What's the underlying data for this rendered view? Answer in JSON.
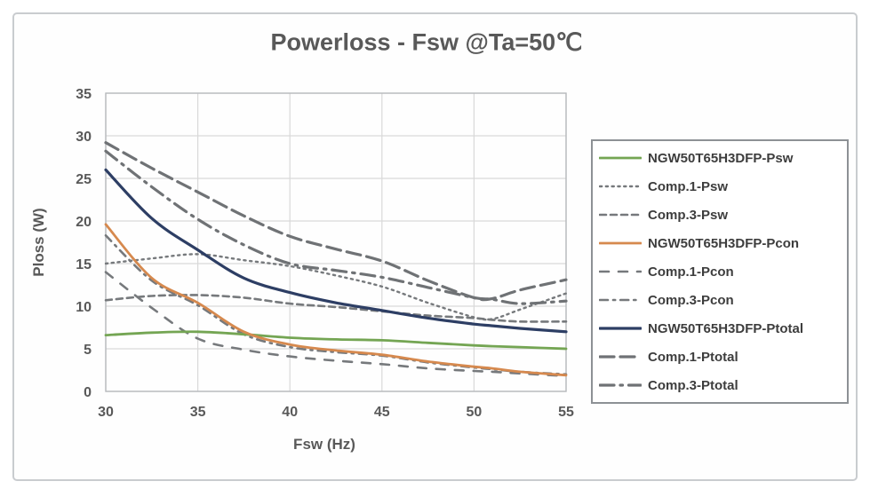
{
  "title": "Powerloss - Fsw @Ta=50℃",
  "colors": {
    "green": "#74a553",
    "orange": "#d6894e",
    "navy": "#2d3e64",
    "gray": "#76797c",
    "gray_dark": "#6f7275",
    "gridline": "#d9d9d9",
    "plot_border": "#b7babd",
    "axis_text": "#595959",
    "legend_text": "#3d3d3d"
  },
  "chart_data": {
    "type": "line",
    "title": "Powerloss - Fsw @Ta=50℃",
    "xlabel": "Fsw (Hz)",
    "ylabel": "Ploss (W)",
    "xlim": [
      30,
      55
    ],
    "ylim": [
      0,
      35
    ],
    "xticks": [
      30,
      35,
      40,
      45,
      50,
      55
    ],
    "yticks": [
      0,
      5,
      10,
      15,
      20,
      25,
      30,
      35
    ],
    "grid": true,
    "legend_position": "right",
    "x": [
      30,
      32.5,
      35,
      37.5,
      40,
      42.5,
      45,
      47.5,
      50,
      51,
      52.5,
      55
    ],
    "series": [
      {
        "name": "NGW50T65H3DFP-Psw",
        "color": "#74a553",
        "dash": [],
        "width": 2.8,
        "values": [
          6.6,
          6.9,
          7.0,
          6.7,
          6.3,
          6.1,
          6.0,
          5.7,
          5.4,
          5.3,
          5.2,
          5.0
        ]
      },
      {
        "name": "Comp.1-Psw",
        "color": "#76797c",
        "dash": [
          2.2,
          4.6
        ],
        "width": 2.4,
        "values": [
          15.0,
          15.6,
          16.1,
          15.4,
          14.7,
          13.6,
          12.3,
          10.4,
          8.7,
          8.5,
          9.6,
          11.5
        ]
      },
      {
        "name": "Comp.3-Psw",
        "color": "#76797c",
        "dash": [
          7,
          5
        ],
        "width": 2.6,
        "values": [
          10.7,
          11.2,
          11.3,
          11.0,
          10.3,
          9.9,
          9.4,
          8.9,
          8.6,
          8.4,
          8.2,
          8.2
        ]
      },
      {
        "name": "NGW50T65H3DFP-Pcon",
        "color": "#d6894e",
        "dash": [],
        "width": 2.8,
        "values": [
          19.6,
          13.3,
          10.4,
          7.0,
          5.5,
          4.8,
          4.3,
          3.5,
          2.9,
          2.7,
          2.3,
          1.9
        ]
      },
      {
        "name": "Comp.1-Pcon",
        "color": "#76797c",
        "dash": [
          10,
          11
        ],
        "width": 2.6,
        "values": [
          14.0,
          9.8,
          6.2,
          4.9,
          4.1,
          3.6,
          3.2,
          2.7,
          2.4,
          2.3,
          2.1,
          1.8
        ]
      },
      {
        "name": "Comp.3-Pcon",
        "color": "#76797c",
        "dash": [
          9,
          6,
          2.2,
          6
        ],
        "width": 2.6,
        "values": [
          18.3,
          13.0,
          10.1,
          6.7,
          5.2,
          4.6,
          4.2,
          3.4,
          2.8,
          2.6,
          2.3,
          2.0
        ]
      },
      {
        "name": "NGW50T65H3DFP-Ptotal",
        "color": "#2d3e64",
        "dash": [],
        "width": 3.2,
        "values": [
          26.0,
          20.3,
          16.6,
          13.3,
          11.6,
          10.4,
          9.5,
          8.6,
          7.9,
          7.7,
          7.4,
          7.0
        ]
      },
      {
        "name": "Comp.1-Ptotal",
        "color": "#6f7275",
        "dash": [
          16,
          7
        ],
        "width": 3.2,
        "values": [
          29.2,
          26.2,
          23.4,
          20.6,
          18.2,
          16.7,
          15.3,
          13.0,
          11.0,
          10.9,
          11.9,
          13.1
        ]
      },
      {
        "name": "Comp.3-Ptotal",
        "color": "#6f7275",
        "dash": [
          16,
          7,
          2.5,
          7
        ],
        "width": 3.2,
        "values": [
          28.2,
          24.0,
          20.2,
          17.2,
          15.0,
          14.2,
          13.4,
          12.2,
          11.0,
          10.8,
          10.3,
          10.6
        ]
      }
    ]
  }
}
